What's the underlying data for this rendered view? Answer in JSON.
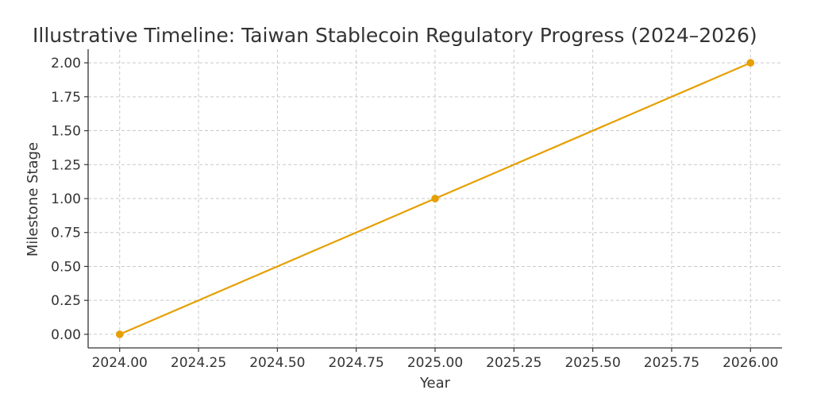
{
  "chart_data": {
    "type": "line",
    "title": "Illustrative Timeline: Taiwan Stablecoin Regulatory Progress (2024–2026)",
    "xlabel": "Year",
    "ylabel": "Milestone Stage",
    "x": [
      2024,
      2025,
      2026
    ],
    "series": [
      {
        "values": [
          0,
          1,
          2
        ],
        "color": "#e69f00",
        "marker": "circle"
      }
    ],
    "xlim": [
      2023.9,
      2026.1
    ],
    "ylim": [
      -0.1,
      2.1
    ],
    "xticks": [
      2024.0,
      2024.25,
      2024.5,
      2024.75,
      2025.0,
      2025.25,
      2025.5,
      2025.75,
      2026.0
    ],
    "xtick_labels": [
      "2024.00",
      "2024.25",
      "2024.50",
      "2024.75",
      "2025.00",
      "2025.25",
      "2025.50",
      "2025.75",
      "2026.00"
    ],
    "yticks": [
      0,
      0.25,
      0.5,
      0.75,
      1.0,
      1.25,
      1.5,
      1.75,
      2.0
    ],
    "ytick_labels": [
      "0.00",
      "0.25",
      "0.50",
      "0.75",
      "1.00",
      "1.25",
      "1.50",
      "1.75",
      "2.00"
    ],
    "grid": true,
    "legend": false
  }
}
